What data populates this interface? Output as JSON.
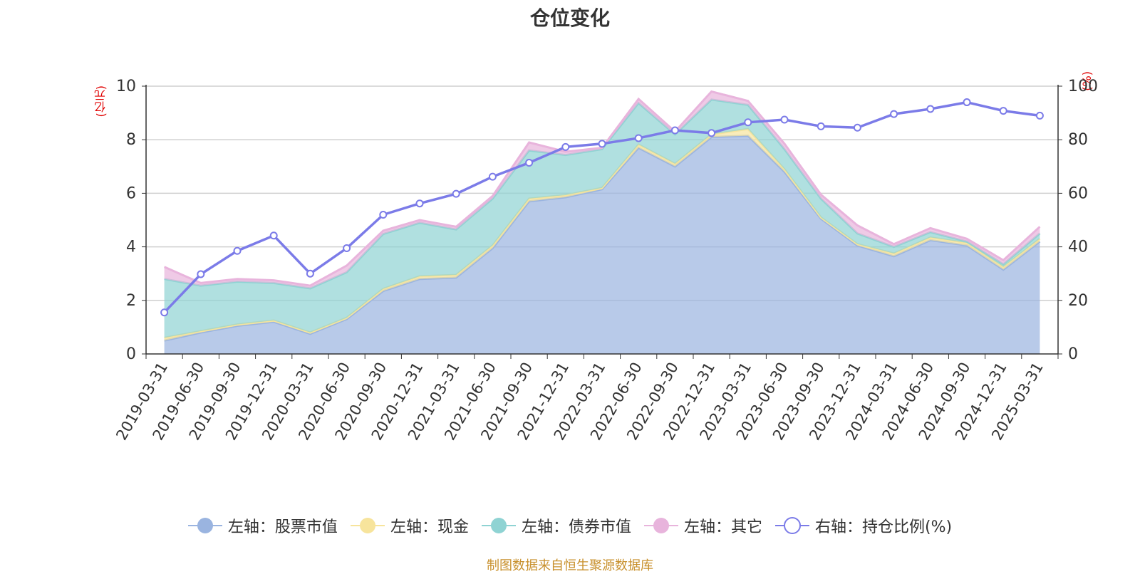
{
  "title": "仓位变化",
  "footer": "制图数据来自恒生聚源数据库",
  "left_unit": "(亿元)",
  "right_unit": "(%)",
  "colors": {
    "stock": "#9ab4e0",
    "cash": "#f7e49c",
    "bond": "#8fd3d3",
    "other": "#e8b4dc",
    "ratio": "#7b7be8",
    "axis_unit": "#e00000",
    "footer": "#c8902c"
  },
  "legend": [
    {
      "key": "stock",
      "label": "左轴：股票市值",
      "icon": "filled-circle"
    },
    {
      "key": "cash",
      "label": "左轴：现金",
      "icon": "filled-circle"
    },
    {
      "key": "bond",
      "label": "左轴：债券市值",
      "icon": "filled-circle"
    },
    {
      "key": "other",
      "label": "左轴：其它",
      "icon": "filled-circle"
    },
    {
      "key": "ratio",
      "label": "右轴：持仓比例(%)",
      "icon": "hollow-circle"
    }
  ],
  "chart_data": {
    "type": "area",
    "title": "仓位变化",
    "categories": [
      "2019-03-31",
      "2019-06-30",
      "2019-09-30",
      "2019-12-31",
      "2020-03-31",
      "2020-06-30",
      "2020-09-30",
      "2020-12-31",
      "2021-03-31",
      "2021-06-30",
      "2021-09-30",
      "2021-12-31",
      "2022-03-31",
      "2022-06-30",
      "2022-09-30",
      "2022-12-31",
      "2023-03-31",
      "2023-06-30",
      "2023-09-30",
      "2023-12-31",
      "2024-03-31",
      "2024-06-30",
      "2024-09-30",
      "2024-12-31",
      "2025-03-31"
    ],
    "left_axis": {
      "label": "(亿元)",
      "ylim": [
        0,
        10
      ],
      "ticks": [
        0,
        2,
        4,
        6,
        8,
        10
      ]
    },
    "right_axis": {
      "label": "(%)",
      "ylim": [
        0,
        100
      ],
      "ticks": [
        0,
        20,
        40,
        60,
        80,
        100
      ]
    },
    "stacked_series": [
      {
        "key": "stock",
        "name": "左轴：股票市值",
        "axis": "left",
        "values": [
          0.5,
          0.8,
          1.05,
          1.2,
          0.75,
          1.3,
          2.35,
          2.8,
          2.85,
          3.95,
          5.7,
          5.85,
          6.15,
          7.7,
          7.0,
          8.1,
          8.15,
          6.8,
          5.05,
          4.05,
          3.65,
          4.25,
          4.05,
          3.15,
          4.2
        ]
      },
      {
        "key": "cash",
        "name": "左轴：现金",
        "axis": "left",
        "values": [
          0.1,
          0.05,
          0.05,
          0.05,
          0.05,
          0.05,
          0.08,
          0.1,
          0.1,
          0.1,
          0.1,
          0.08,
          0.05,
          0.12,
          0.1,
          0.1,
          0.25,
          0.1,
          0.05,
          0.05,
          0.1,
          0.1,
          0.1,
          0.1,
          0.1
        ]
      },
      {
        "key": "bond",
        "name": "左轴：债券市值",
        "axis": "left",
        "values": [
          2.2,
          1.7,
          1.6,
          1.4,
          1.65,
          1.7,
          2.05,
          2.0,
          1.7,
          1.75,
          1.8,
          1.5,
          1.45,
          1.55,
          1.1,
          1.3,
          0.9,
          0.75,
          0.7,
          0.4,
          0.25,
          0.2,
          0.05,
          0.1,
          0.2
        ]
      },
      {
        "key": "other",
        "name": "左轴：其它",
        "axis": "left",
        "values": [
          0.45,
          0.1,
          0.1,
          0.1,
          0.1,
          0.25,
          0.12,
          0.1,
          0.1,
          0.1,
          0.3,
          0.12,
          0.05,
          0.15,
          0.1,
          0.3,
          0.15,
          0.2,
          0.15,
          0.3,
          0.1,
          0.15,
          0.1,
          0.15,
          0.25
        ]
      }
    ],
    "line_series": {
      "key": "ratio",
      "name": "右轴：持仓比例(%)",
      "axis": "right",
      "values": [
        15.5,
        29.8,
        38.5,
        44.2,
        30.0,
        39.5,
        52.0,
        56.2,
        59.8,
        66.2,
        71.4,
        77.3,
        78.5,
        80.6,
        83.5,
        82.5,
        86.5,
        87.5,
        85.0,
        84.5,
        89.6,
        91.5,
        94.0,
        90.8,
        89.0
      ]
    }
  }
}
